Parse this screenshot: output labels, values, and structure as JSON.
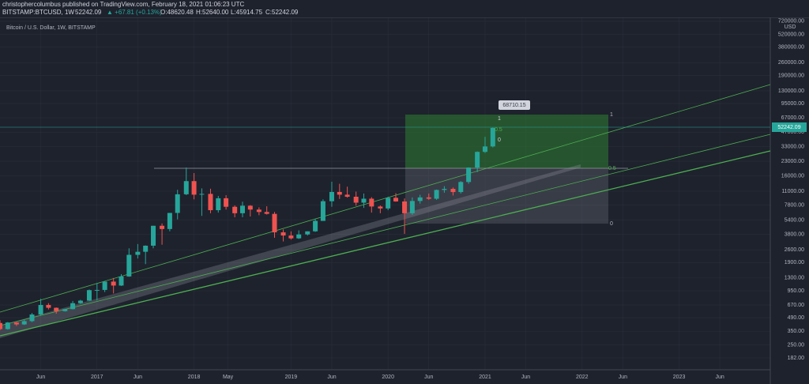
{
  "header": {
    "author_line": "christophercolumbus published on TradingView.com, February 18, 2021 01:06:23 UTC",
    "symbol": "BITSTAMP:BTCUSD, 1W",
    "last": "52242.09",
    "change": "▲ +67.81 (+0.13%)",
    "ohlc": [
      "O:48620.48",
      "H:52640.00",
      "L:45914.75",
      "C:52242.09"
    ]
  },
  "annotations": {
    "axis_unit": "USD",
    "price_tag": "52242.09",
    "target_label": "68710.15",
    "fib_near": [
      "1",
      "0.5",
      "0"
    ],
    "fib_box": [
      "1",
      "0.5",
      "0"
    ]
  },
  "chart_data": {
    "type": "candlestick",
    "title": "Bitcoin / U.S. Dollar, 1W, BITSTAMP",
    "log_scale": true,
    "up_color": "#26a69a",
    "down_color": "#ef5350",
    "x": [
      2016.0,
      2016.08,
      2016.17,
      2016.25,
      2016.33,
      2016.42,
      2016.5,
      2016.58,
      2016.67,
      2016.75,
      2016.83,
      2016.92,
      2017.0,
      2017.08,
      2017.17,
      2017.25,
      2017.33,
      2017.42,
      2017.5,
      2017.58,
      2017.67,
      2017.75,
      2017.83,
      2017.92,
      2018.0,
      2018.08,
      2018.17,
      2018.25,
      2018.33,
      2018.42,
      2018.5,
      2018.58,
      2018.67,
      2018.75,
      2018.83,
      2018.92,
      2019.0,
      2019.08,
      2019.17,
      2019.25,
      2019.33,
      2019.42,
      2019.5,
      2019.58,
      2019.67,
      2019.75,
      2019.83,
      2019.92,
      2020.0,
      2020.08,
      2020.17,
      2020.25,
      2020.33,
      2020.42,
      2020.5,
      2020.58,
      2020.67,
      2020.75,
      2020.83,
      2020.92,
      2021.0,
      2021.08
    ],
    "open": [
      430,
      370,
      435,
      415,
      450,
      530,
      670,
      625,
      575,
      605,
      700,
      745,
      965,
      970,
      1190,
      1080,
      1350,
      2300,
      2480,
      2880,
      4700,
      4340,
      6450,
      10200,
      14100,
      10100,
      10300,
      6900,
      9250,
      7500,
      6400,
      7700,
      7000,
      6600,
      6300,
      4000,
      3700,
      3450,
      3800,
      4100,
      5300,
      8600,
      10800,
      10100,
      9600,
      8300,
      9150,
      7550,
      7200,
      9350,
      8550,
      6400,
      8650,
      9450,
      9140,
      11350,
      11650,
      10780,
      13800,
      19700,
      28950,
      33100
    ],
    "high": [
      460,
      440,
      440,
      465,
      550,
      780,
      700,
      630,
      610,
      740,
      760,
      980,
      1150,
      1200,
      1300,
      1430,
      2700,
      3000,
      2900,
      4700,
      4980,
      6450,
      11400,
      19700,
      17200,
      11800,
      11700,
      9800,
      9990,
      7750,
      8500,
      7800,
      7400,
      7600,
      6600,
      4300,
      4100,
      4200,
      4100,
      5600,
      9000,
      13900,
      13200,
      12300,
      10900,
      10400,
      9500,
      7750,
      9600,
      10500,
      9200,
      9450,
      10070,
      10400,
      11450,
      12450,
      12050,
      14100,
      19800,
      29300,
      41950,
      52640
    ],
    "low": [
      360,
      365,
      400,
      410,
      440,
      520,
      600,
      540,
      570,
      600,
      690,
      740,
      750,
      920,
      890,
      1070,
      1340,
      2100,
      1830,
      2700,
      2950,
      4100,
      5500,
      10000,
      9000,
      6000,
      6400,
      6500,
      7000,
      5800,
      5800,
      5900,
      6100,
      6200,
      3500,
      3200,
      3350,
      3400,
      3700,
      4050,
      5300,
      7500,
      9100,
      9400,
      7700,
      7300,
      6500,
      6400,
      6900,
      8500,
      3850,
      6150,
      8100,
      8900,
      8900,
      10600,
      9900,
      10400,
      13200,
      17600,
      28200,
      32300
    ],
    "close": [
      370,
      435,
      415,
      450,
      530,
      670,
      625,
      575,
      605,
      700,
      745,
      965,
      970,
      1190,
      1080,
      1350,
      2300,
      2480,
      2880,
      4700,
      4340,
      6450,
      10200,
      14100,
      10100,
      10300,
      6900,
      9250,
      7500,
      6400,
      7700,
      7000,
      6600,
      6300,
      4000,
      3700,
      3450,
      3800,
      4100,
      5300,
      8600,
      10800,
      10100,
      9600,
      8300,
      9150,
      7550,
      7200,
      9350,
      8550,
      6400,
      8650,
      9450,
      9140,
      11350,
      11650,
      10780,
      13800,
      19700,
      28950,
      33100,
      52242
    ],
    "xlim": [
      2016.0,
      2023.94
    ],
    "xticks": [
      {
        "value": 2016.42,
        "label": "Jun"
      },
      {
        "value": 2017,
        "label": "2017"
      },
      {
        "value": 2017.42,
        "label": "Jun"
      },
      {
        "value": 2018,
        "label": "2018"
      },
      {
        "value": 2018.35,
        "label": "May"
      },
      {
        "value": 2019,
        "label": "2019"
      },
      {
        "value": 2019.42,
        "label": "Jun"
      },
      {
        "value": 2020,
        "label": "2020"
      },
      {
        "value": 2020.42,
        "label": "Jun"
      },
      {
        "value": 2021,
        "label": "2021"
      },
      {
        "value": 2021.42,
        "label": "Jun"
      },
      {
        "value": 2022,
        "label": "2022"
      },
      {
        "value": 2022.42,
        "label": "Jun"
      },
      {
        "value": 2023,
        "label": "2023"
      },
      {
        "value": 2023.42,
        "label": "Jun"
      }
    ],
    "ylim": [
      136,
      792000
    ],
    "yticks": [
      {
        "value": 720000,
        "label": "720000.00"
      },
      {
        "value": 520000,
        "label": "520000.00"
      },
      {
        "value": 380000,
        "label": "380000.00"
      },
      {
        "value": 260000,
        "label": "260000.00"
      },
      {
        "value": 190000,
        "label": "190000.00"
      },
      {
        "value": 130000,
        "label": "130000.00"
      },
      {
        "value": 95000,
        "label": "95000.00"
      },
      {
        "value": 67000,
        "label": "67000.00"
      },
      {
        "value": 47000,
        "label": "47000.00"
      },
      {
        "value": 33000,
        "label": "33000.00"
      },
      {
        "value": 23000,
        "label": "23000.00"
      },
      {
        "value": 16000,
        "label": "16000.00"
      },
      {
        "value": 11000,
        "label": "11000.00"
      },
      {
        "value": 7800,
        "label": "7800.00"
      },
      {
        "value": 5400,
        "label": "5400.00"
      },
      {
        "value": 3800,
        "label": "3800.00"
      },
      {
        "value": 2600,
        "label": "2600.00"
      },
      {
        "value": 1900,
        "label": "1900.00"
      },
      {
        "value": 1300,
        "label": "1300.00"
      },
      {
        "value": 950,
        "label": "950.00"
      },
      {
        "value": 670,
        "label": "670.00"
      },
      {
        "value": 490,
        "label": "490.00"
      },
      {
        "value": 350,
        "label": "350.00"
      },
      {
        "value": 250,
        "label": "250.00"
      },
      {
        "value": 182,
        "label": "182.00"
      }
    ],
    "grid": true
  }
}
